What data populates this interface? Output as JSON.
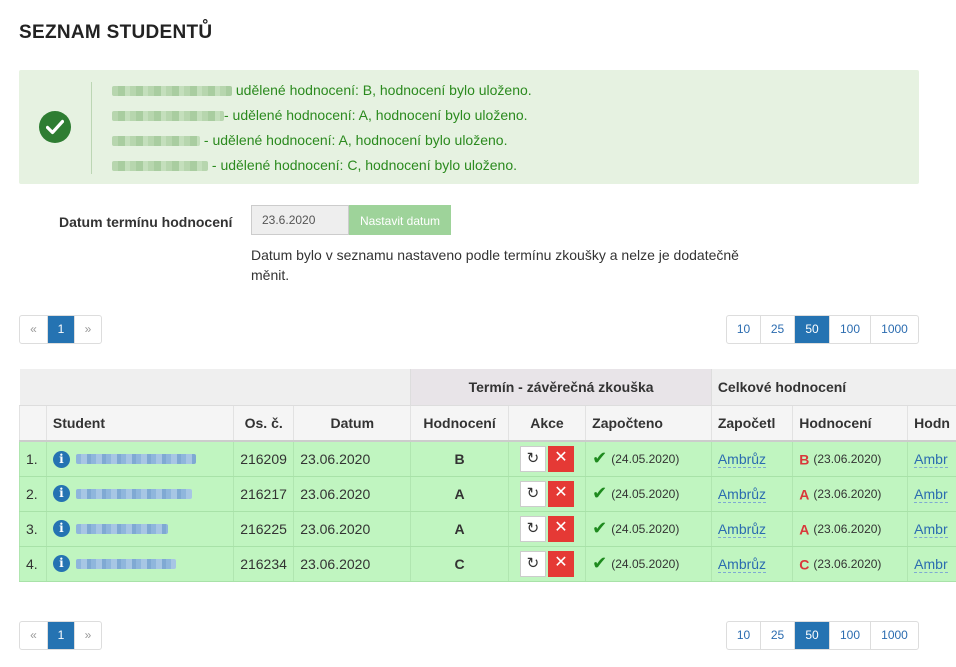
{
  "page": {
    "title": "SEZNAM STUDENTŮ"
  },
  "alert": {
    "messages": [
      {
        "blur_width": 120,
        "text": " udělené hodnocení: B, hodnocení bylo uloženo."
      },
      {
        "blur_width": 112,
        "text": "- udělené hodnocení: A, hodnocení bylo uloženo."
      },
      {
        "blur_width": 88,
        "text": " - udělené hodnocení: A, hodnocení bylo uloženo."
      },
      {
        "blur_width": 96,
        "text": " - udělené hodnocení: C, hodnocení bylo uloženo."
      }
    ]
  },
  "date_form": {
    "label": "Datum termínu hodnocení",
    "value": "23.6.2020",
    "button": "Nastavit datum",
    "note": "Datum bylo v seznamu nastaveno podle termínu zkoušky a nelze je dodatečně měnit."
  },
  "pager": {
    "prev": "«",
    "current": "1",
    "next": "»"
  },
  "page_sizes": [
    "10",
    "25",
    "50",
    "100",
    "1000"
  ],
  "page_size_active": "50",
  "table": {
    "group_headers": {
      "termin": "Termín - závěrečná zkouška",
      "overall": "Celkové hodnocení"
    },
    "columns": {
      "student": "Student",
      "os": "Os. č.",
      "datum": "Datum",
      "hodnoceni": "Hodnocení",
      "akce": "Akce",
      "zapocteno": "Započteno",
      "zapocetl": "Započetl",
      "hodnoceni2": "Hodnocení",
      "hodn_cut": "Hodn"
    },
    "rows": [
      {
        "num": "1.",
        "name_blur": 120,
        "os": "216209",
        "datum": "23.06.2020",
        "grade": "B",
        "zap_date": "(24.05.2020)",
        "zapocetl": "Ambrůz",
        "grade2": "B",
        "grade2_date": "(23.06.2020)",
        "cut": "Ambr"
      },
      {
        "num": "2.",
        "name_blur": 116,
        "os": "216217",
        "datum": "23.06.2020",
        "grade": "A",
        "zap_date": "(24.05.2020)",
        "zapocetl": "Ambrůz",
        "grade2": "A",
        "grade2_date": "(23.06.2020)",
        "cut": "Ambr"
      },
      {
        "num": "3.",
        "name_blur": 92,
        "os": "216225",
        "datum": "23.06.2020",
        "grade": "A",
        "zap_date": "(24.05.2020)",
        "zapocetl": "Ambrůz",
        "grade2": "A",
        "grade2_date": "(23.06.2020)",
        "cut": "Ambr"
      },
      {
        "num": "4.",
        "name_blur": 100,
        "os": "216234",
        "datum": "23.06.2020",
        "grade": "C",
        "zap_date": "(24.05.2020)",
        "zapocetl": "Ambrůz",
        "grade2": "C",
        "grade2_date": "(23.06.2020)",
        "cut": "Ambr"
      }
    ]
  },
  "icons": {
    "success": "check-circle-icon",
    "info": "info-icon",
    "reset": "reset-icon",
    "delete": "close-icon",
    "tick": "check-icon"
  },
  "colors": {
    "success_bg": "#e6f2e1",
    "success_text": "#2b8a1e",
    "row_bg": "#c0f5c0",
    "primary": "#2573b2",
    "danger": "#e53935",
    "grade_red": "#d9383a"
  }
}
